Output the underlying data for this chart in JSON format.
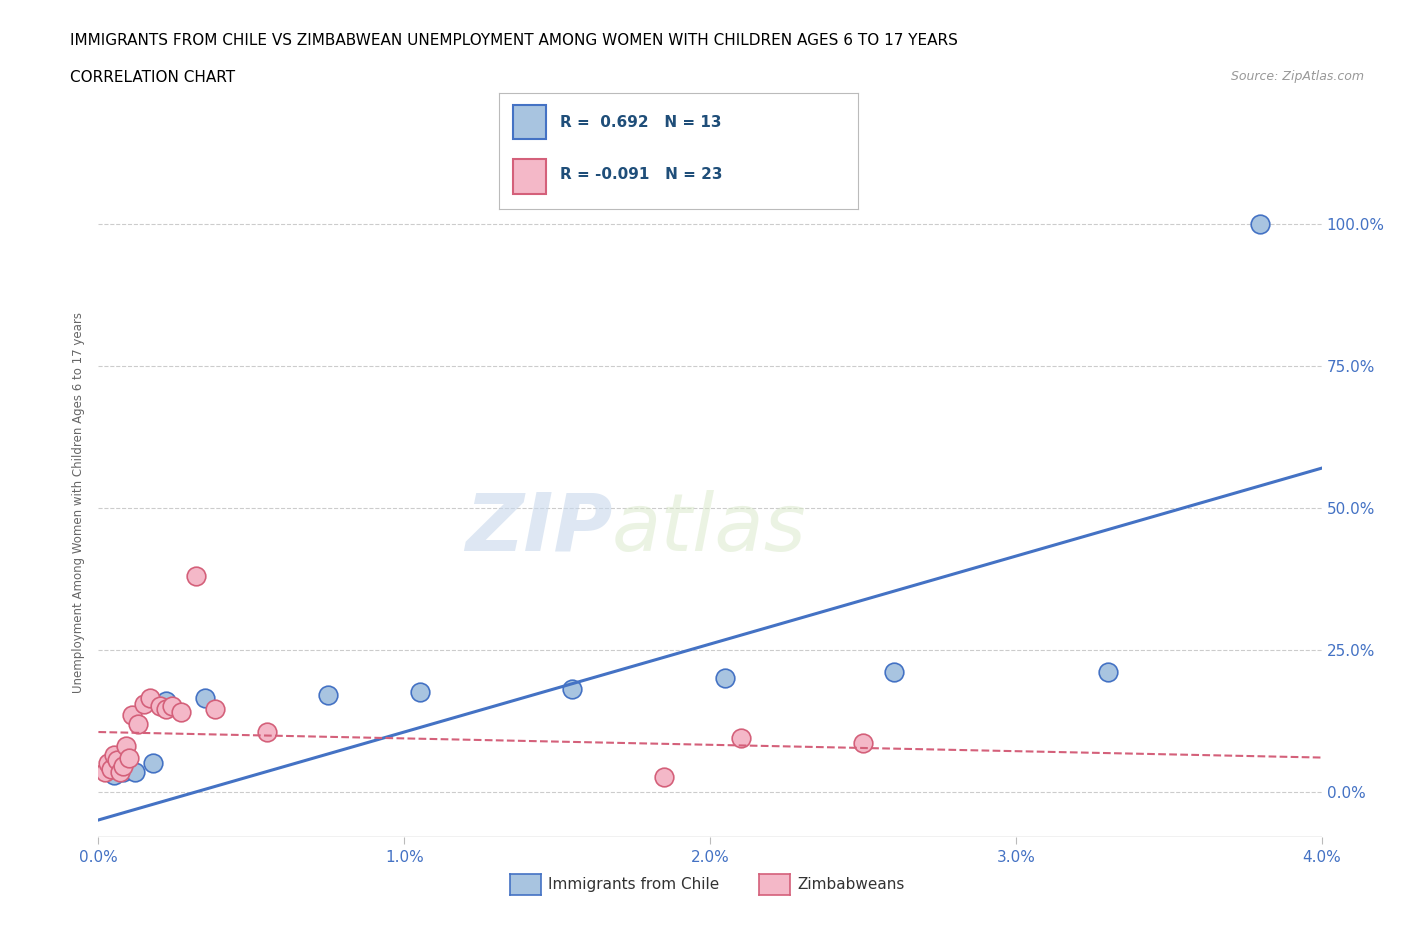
{
  "title_line1": "IMMIGRANTS FROM CHILE VS ZIMBABWEAN UNEMPLOYMENT AMONG WOMEN WITH CHILDREN AGES 6 TO 17 YEARS",
  "title_line2": "CORRELATION CHART",
  "source": "Source: ZipAtlas.com",
  "xlabel_ticks": [
    "0.0%",
    "1.0%",
    "2.0%",
    "3.0%",
    "4.0%"
  ],
  "xlabel_vals": [
    0.0,
    1.0,
    2.0,
    3.0,
    4.0
  ],
  "ylabel_ticks": [
    "0.0%",
    "25.0%",
    "50.0%",
    "75.0%",
    "100.0%"
  ],
  "ylabel_vals": [
    0.0,
    25.0,
    50.0,
    75.0,
    100.0
  ],
  "xlim": [
    0.0,
    4.0
  ],
  "ylim": [
    -8.0,
    110.0
  ],
  "chile_color": "#a8c4e0",
  "chile_edge_color": "#4472c4",
  "zimb_color": "#f4b8c8",
  "zimb_edge_color": "#d4607a",
  "chile_R": 0.692,
  "chile_N": 13,
  "zimb_R": -0.091,
  "zimb_N": 23,
  "legend_label_chile": "Immigrants from Chile",
  "legend_label_zimb": "Zimbabweans",
  "legend_R_color": "#1f4e79",
  "watermark_zip": "ZIP",
  "watermark_atlas": "atlas",
  "chile_line_x0": 0.0,
  "chile_line_y0": -5.0,
  "chile_line_x1": 4.0,
  "chile_line_y1": 57.0,
  "zimb_line_x0": 0.0,
  "zimb_line_y0": 10.5,
  "zimb_line_x1": 4.0,
  "zimb_line_y1": 6.0,
  "chile_scatter_x": [
    0.05,
    0.08,
    0.12,
    0.18,
    0.22,
    0.35,
    0.75,
    1.05,
    1.55,
    2.05,
    2.6,
    3.3,
    3.8
  ],
  "chile_scatter_y": [
    3.0,
    3.5,
    3.5,
    5.0,
    16.0,
    16.5,
    17.0,
    17.5,
    18.0,
    20.0,
    21.0,
    21.0,
    100.0
  ],
  "zimb_scatter_x": [
    0.02,
    0.03,
    0.04,
    0.05,
    0.06,
    0.07,
    0.08,
    0.09,
    0.1,
    0.11,
    0.13,
    0.15,
    0.17,
    0.2,
    0.22,
    0.24,
    0.27,
    0.32,
    0.38,
    0.55,
    1.85,
    2.1,
    2.5
  ],
  "zimb_scatter_y": [
    3.5,
    5.0,
    4.0,
    6.5,
    5.5,
    3.5,
    4.5,
    8.0,
    6.0,
    13.5,
    12.0,
    15.5,
    16.5,
    15.0,
    14.5,
    15.0,
    14.0,
    38.0,
    14.5,
    10.5,
    2.5,
    9.5,
    8.5
  ],
  "bg_color": "#ffffff",
  "grid_color": "#cccccc",
  "title_color": "#000000",
  "title_fontsize": 11,
  "subtitle_fontsize": 11,
  "tick_color": "#4472c4",
  "ylabel_text": "Unemployment Among Women with Children Ages 6 to 17 years"
}
